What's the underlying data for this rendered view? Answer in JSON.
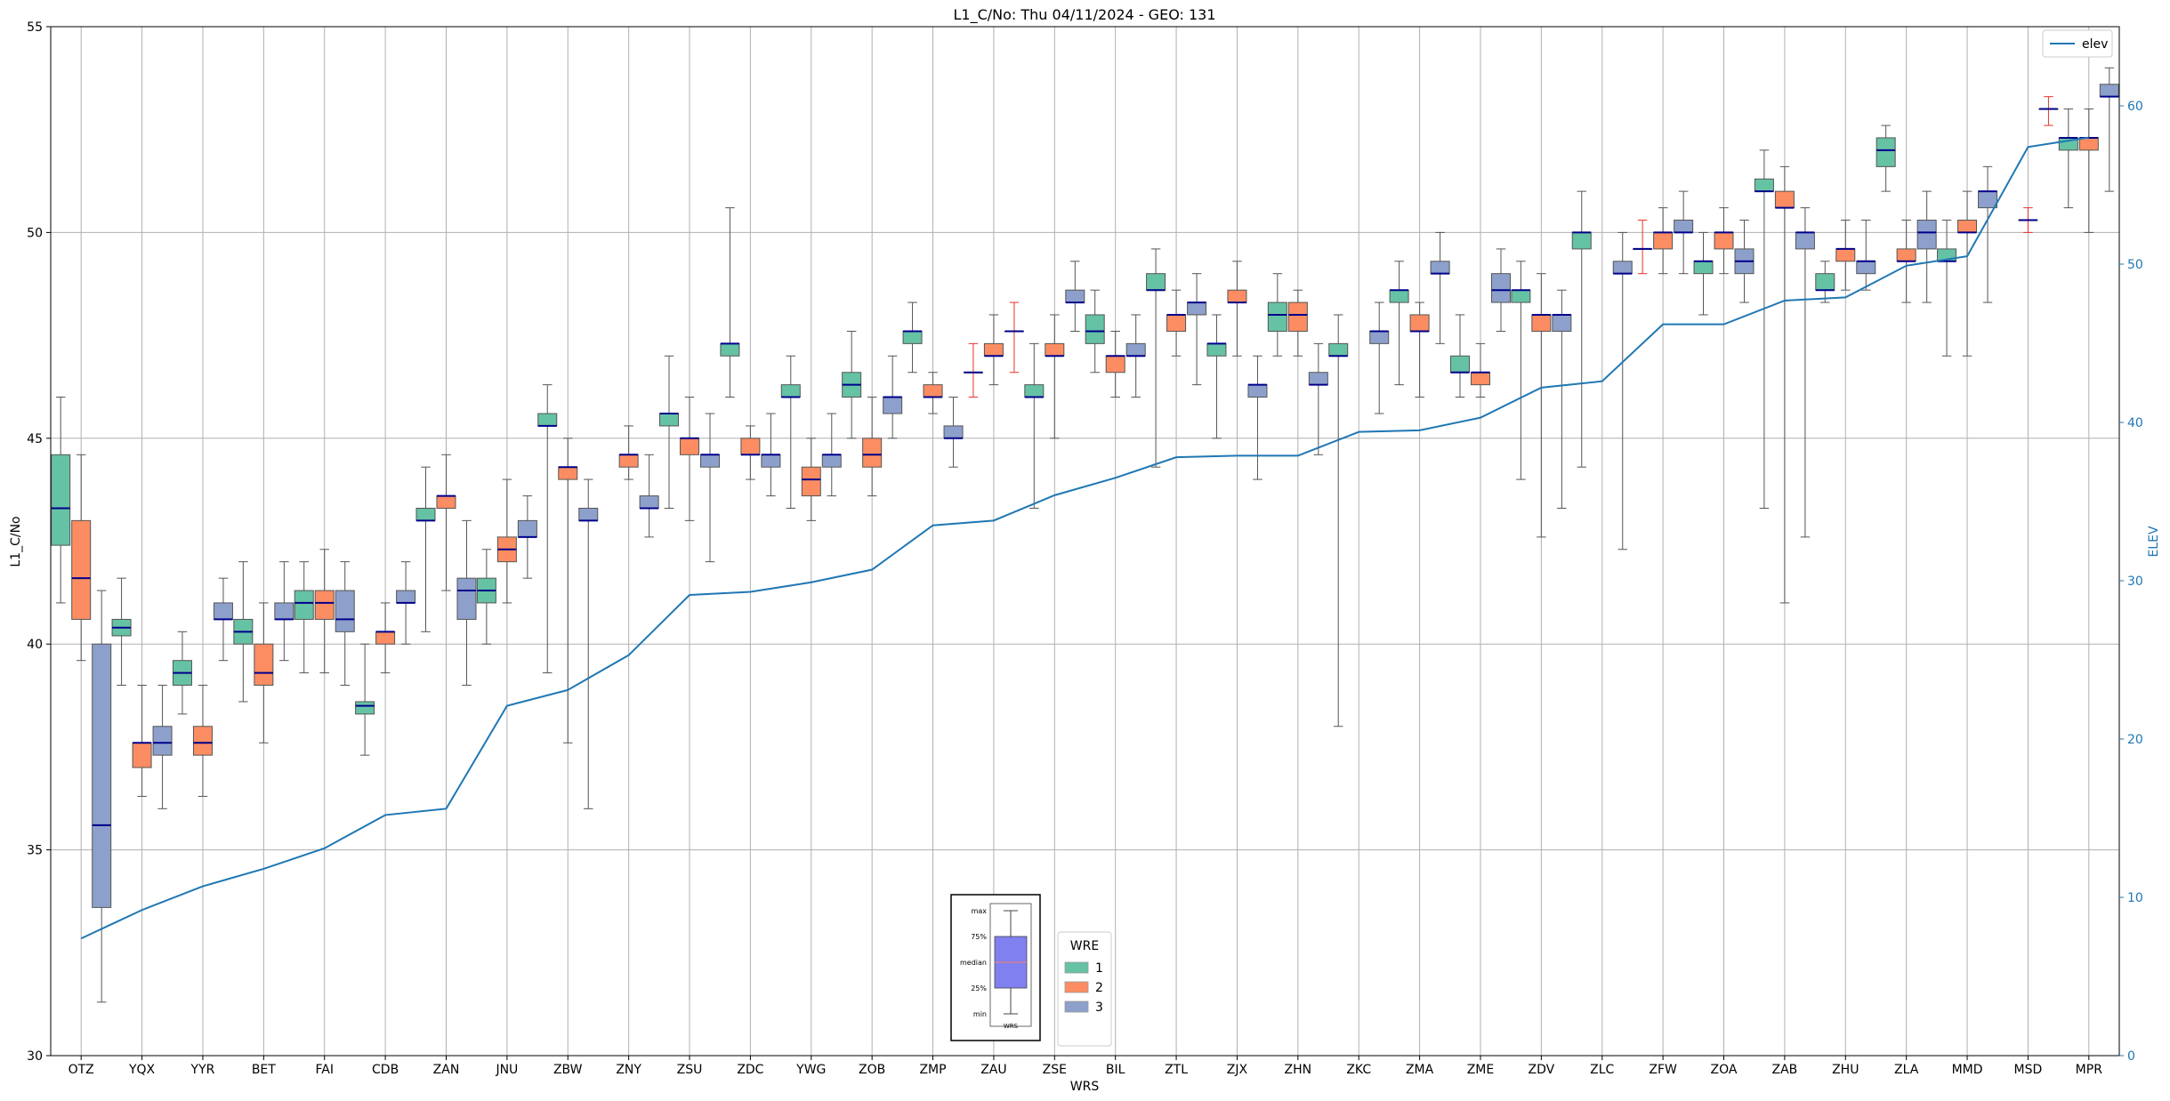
{
  "chart_data": {
    "type": "box",
    "title": "L1_C/No: Thu 04/11/2024 - GEO: 131",
    "xlabel": "WRS",
    "ylabel": "L1_C/No",
    "y2label": "ELEV",
    "ylim": [
      30,
      55
    ],
    "y2lim": [
      0,
      65
    ],
    "yticks": [
      30,
      35,
      40,
      45,
      50,
      55
    ],
    "y2ticks": [
      0,
      10,
      20,
      30,
      40,
      50,
      60
    ],
    "grid": true,
    "categories": [
      "OTZ",
      "YQX",
      "YYR",
      "BET",
      "FAI",
      "CDB",
      "ZAN",
      "JNU",
      "ZBW",
      "ZNY",
      "ZSU",
      "ZDC",
      "YWG",
      "ZOB",
      "ZMP",
      "ZAU",
      "ZSE",
      "BIL",
      "ZTL",
      "ZJX",
      "ZHN",
      "ZKC",
      "ZMA",
      "ZME",
      "ZDV",
      "ZLC",
      "ZFW",
      "ZOA",
      "ZAB",
      "ZHU",
      "ZLA",
      "MMD",
      "MSD",
      "MPR"
    ],
    "legend_title": "WRE",
    "legend_position": "bottom-center",
    "series": [
      {
        "name": "1",
        "color": "#66c2a5",
        "boxes": [
          [
            41.0,
            42.4,
            43.3,
            44.6,
            46.0
          ],
          [
            39.0,
            40.2,
            40.4,
            40.6,
            41.6
          ],
          [
            38.3,
            39.0,
            39.3,
            39.6,
            40.3
          ],
          [
            38.6,
            40.0,
            40.3,
            40.6,
            42.0
          ],
          [
            39.3,
            40.6,
            41.0,
            41.3,
            42.0
          ],
          [
            37.3,
            38.3,
            38.5,
            38.6,
            40.0
          ],
          [
            40.3,
            43.0,
            43.0,
            43.3,
            44.3
          ],
          [
            40.0,
            41.0,
            41.3,
            41.6,
            42.3
          ],
          [
            39.3,
            45.3,
            45.3,
            45.6,
            46.3
          ],
          null,
          [
            43.3,
            45.3,
            45.6,
            45.6,
            47.0
          ],
          [
            46.0,
            47.0,
            47.3,
            47.3,
            50.6
          ],
          [
            43.3,
            46.0,
            46.0,
            46.3,
            47.0
          ],
          [
            45.0,
            46.0,
            46.3,
            46.6,
            47.6
          ],
          [
            46.6,
            47.3,
            47.6,
            47.6,
            48.3
          ],
          [
            46.0,
            46.6,
            46.6,
            46.6,
            47.3
          ],
          [
            43.3,
            46.0,
            46.0,
            46.3,
            47.3
          ],
          [
            46.6,
            47.3,
            47.6,
            48.0,
            48.6
          ],
          [
            44.3,
            48.6,
            48.6,
            49.0,
            49.6
          ],
          [
            45.0,
            47.0,
            47.3,
            47.3,
            48.0
          ],
          [
            47.0,
            47.6,
            48.0,
            48.3,
            49.0
          ],
          [
            38.0,
            47.0,
            47.0,
            47.3,
            48.0
          ],
          [
            46.3,
            48.3,
            48.6,
            48.6,
            49.3
          ],
          [
            46.0,
            46.6,
            46.6,
            47.0,
            48.0
          ],
          [
            44.0,
            48.3,
            48.6,
            48.6,
            49.3
          ],
          [
            44.3,
            49.6,
            50.0,
            50.0,
            51.0
          ],
          [
            49.0,
            49.6,
            49.6,
            49.6,
            50.3
          ],
          [
            48.0,
            49.0,
            49.3,
            49.3,
            50.0
          ],
          [
            43.3,
            51.0,
            51.0,
            51.3,
            52.0
          ],
          [
            48.3,
            48.6,
            48.6,
            49.0,
            49.3
          ],
          [
            51.0,
            51.6,
            52.0,
            52.3,
            52.6
          ],
          [
            47.0,
            49.3,
            49.3,
            49.6,
            50.3
          ],
          null,
          [
            50.6,
            52.0,
            52.3,
            52.3,
            53.0
          ]
        ]
      },
      {
        "name": "2",
        "color": "#fc8d62",
        "boxes": [
          [
            39.6,
            40.6,
            41.6,
            43.0,
            44.6
          ],
          [
            36.3,
            37.0,
            37.6,
            37.6,
            39.0
          ],
          [
            36.3,
            37.3,
            37.6,
            38.0,
            39.0
          ],
          [
            37.6,
            39.0,
            39.3,
            40.0,
            41.0
          ],
          [
            39.3,
            40.6,
            41.0,
            41.3,
            42.3
          ],
          [
            39.3,
            40.0,
            40.3,
            40.3,
            41.0
          ],
          [
            41.3,
            43.3,
            43.6,
            43.6,
            44.6
          ],
          [
            41.0,
            42.0,
            42.3,
            42.6,
            44.0
          ],
          [
            37.6,
            44.0,
            44.3,
            44.3,
            45.0
          ],
          [
            44.0,
            44.3,
            44.6,
            44.6,
            45.3
          ],
          [
            43.0,
            44.6,
            45.0,
            45.0,
            46.0
          ],
          [
            44.0,
            44.6,
            44.6,
            45.0,
            45.3
          ],
          [
            43.0,
            43.6,
            44.0,
            44.3,
            45.0
          ],
          [
            43.6,
            44.3,
            44.6,
            45.0,
            46.0
          ],
          [
            45.6,
            46.0,
            46.0,
            46.3,
            46.6
          ],
          [
            46.3,
            47.0,
            47.0,
            47.3,
            48.0
          ],
          [
            45.0,
            47.0,
            47.0,
            47.3,
            48.0
          ],
          [
            46.0,
            46.6,
            47.0,
            47.0,
            47.6
          ],
          [
            47.0,
            47.6,
            48.0,
            48.0,
            48.6
          ],
          [
            47.0,
            48.3,
            48.3,
            48.6,
            49.3
          ],
          [
            47.0,
            47.6,
            48.0,
            48.3,
            48.6
          ],
          null,
          [
            46.0,
            47.6,
            47.6,
            48.0,
            48.3
          ],
          [
            46.0,
            46.3,
            46.6,
            46.6,
            47.3
          ],
          [
            42.6,
            47.6,
            48.0,
            48.0,
            49.0
          ],
          null,
          [
            49.0,
            49.6,
            50.0,
            50.0,
            50.6
          ],
          [
            49.0,
            49.6,
            50.0,
            50.0,
            50.6
          ],
          [
            41.0,
            50.6,
            50.6,
            51.0,
            51.6
          ],
          [
            48.6,
            49.3,
            49.6,
            49.6,
            50.3
          ],
          [
            48.3,
            49.3,
            49.3,
            49.6,
            50.3
          ],
          [
            47.0,
            50.0,
            50.0,
            50.3,
            51.0
          ],
          [
            50.0,
            50.3,
            50.3,
            50.3,
            50.6
          ],
          [
            50.0,
            52.0,
            52.3,
            52.3,
            53.0
          ]
        ]
      },
      {
        "name": "3",
        "color": "#8da0cb",
        "boxes": [
          [
            31.3,
            33.6,
            35.6,
            40.0,
            41.3
          ],
          [
            36.0,
            37.3,
            37.6,
            38.0,
            39.0
          ],
          [
            39.6,
            40.6,
            40.6,
            41.0,
            41.6
          ],
          [
            39.6,
            40.6,
            40.6,
            41.0,
            42.0
          ],
          [
            39.0,
            40.3,
            40.6,
            41.3,
            42.0
          ],
          [
            40.0,
            41.0,
            41.0,
            41.3,
            42.0
          ],
          [
            39.0,
            40.6,
            41.3,
            41.6,
            43.0
          ],
          [
            41.6,
            42.6,
            42.6,
            43.0,
            43.6
          ],
          [
            36.0,
            43.0,
            43.0,
            43.3,
            44.0
          ],
          [
            42.6,
            43.3,
            43.3,
            43.6,
            44.6
          ],
          [
            42.0,
            44.3,
            44.6,
            44.6,
            45.6
          ],
          [
            43.6,
            44.3,
            44.6,
            44.6,
            45.6
          ],
          [
            43.6,
            44.3,
            44.6,
            44.6,
            45.6
          ],
          [
            45.0,
            45.6,
            46.0,
            46.0,
            47.0
          ],
          [
            44.3,
            45.0,
            45.0,
            45.3,
            46.0
          ],
          [
            46.6,
            47.6,
            47.6,
            47.6,
            48.3
          ],
          [
            47.6,
            48.3,
            48.3,
            48.6,
            49.3
          ],
          [
            46.0,
            47.0,
            47.0,
            47.3,
            48.0
          ],
          [
            46.3,
            48.0,
            48.3,
            48.3,
            49.0
          ],
          [
            44.0,
            46.0,
            46.3,
            46.3,
            47.0
          ],
          [
            44.6,
            46.3,
            46.3,
            46.6,
            47.3
          ],
          [
            45.6,
            47.3,
            47.6,
            47.6,
            48.3
          ],
          [
            47.3,
            49.0,
            49.0,
            49.3,
            50.0
          ],
          [
            47.6,
            48.3,
            48.6,
            49.0,
            49.6
          ],
          [
            43.3,
            47.6,
            48.0,
            48.0,
            48.6
          ],
          [
            42.3,
            49.0,
            49.0,
            49.3,
            50.0
          ],
          [
            49.0,
            50.0,
            50.0,
            50.3,
            51.0
          ],
          [
            48.3,
            49.0,
            49.3,
            49.6,
            50.3
          ],
          [
            42.6,
            49.6,
            50.0,
            50.0,
            50.6
          ],
          [
            48.6,
            49.0,
            49.3,
            49.3,
            50.3
          ],
          [
            48.3,
            49.6,
            50.0,
            50.3,
            51.0
          ],
          [
            48.3,
            50.6,
            51.0,
            51.0,
            51.6
          ],
          [
            52.6,
            53.0,
            53.0,
            53.0,
            53.3
          ],
          [
            51.0,
            53.3,
            53.3,
            53.6,
            54.0
          ]
        ]
      }
    ],
    "line_series": {
      "name": "elev",
      "color": "#1f77b4",
      "axis": "right",
      "values": [
        7.4,
        9.2,
        10.7,
        11.8,
        13.1,
        15.2,
        15.6,
        22.1,
        23.1,
        25.3,
        29.1,
        29.3,
        29.9,
        30.7,
        33.5,
        33.8,
        35.4,
        36.5,
        37.8,
        37.9,
        37.9,
        39.4,
        39.5,
        40.3,
        42.2,
        42.6,
        46.2,
        46.2,
        47.7,
        47.9,
        49.9,
        50.5,
        57.4,
        58.0
      ]
    },
    "legend2": {
      "entries": [
        "elev"
      ],
      "position": "top-right"
    },
    "inset_legend": {
      "labels": [
        "max",
        "75%",
        "median",
        "25%",
        "min"
      ],
      "caption": "WRS"
    }
  }
}
